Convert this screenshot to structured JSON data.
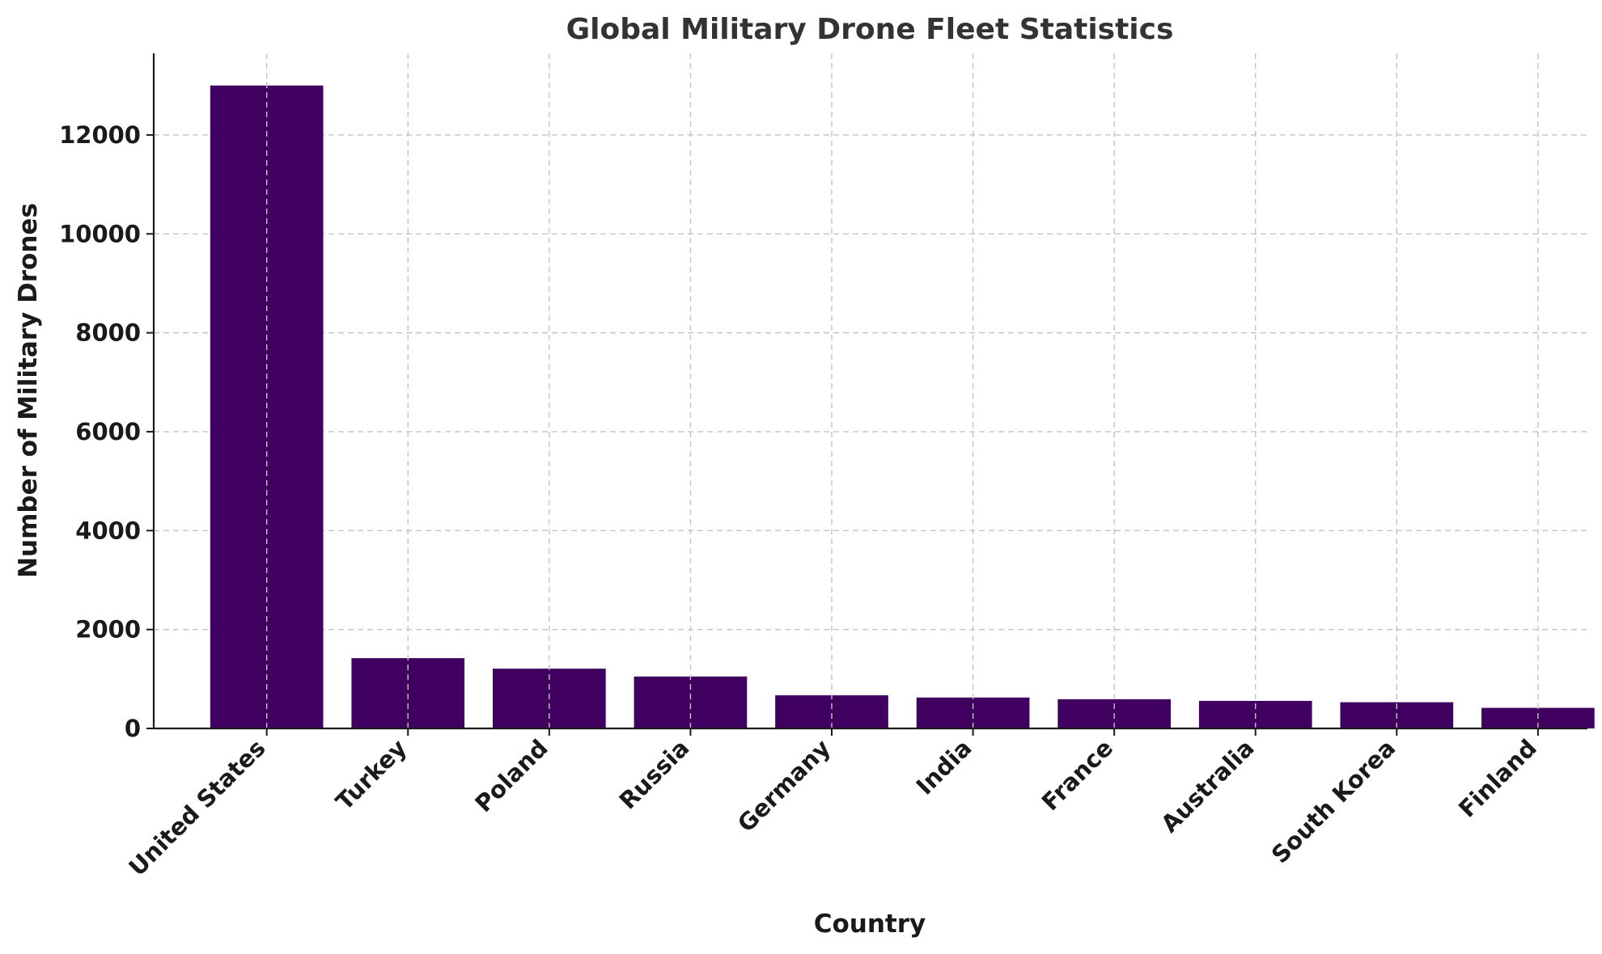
{
  "chart_data": {
    "type": "bar",
    "title": "Global Military Drone Fleet Statistics",
    "xlabel": "Country",
    "ylabel": "Number of Military Drones",
    "categories": [
      "United States",
      "Turkey",
      "Poland",
      "Russia",
      "Germany",
      "India",
      "France",
      "Australia",
      "South Korea",
      "Finland"
    ],
    "values": [
      13000,
      1421,
      1209,
      1050,
      670,
      625,
      591,
      557,
      530,
      416
    ],
    "ylim": [
      0,
      13650
    ],
    "yticks": [
      0,
      2000,
      4000,
      6000,
      8000,
      10000,
      12000
    ],
    "grid": true,
    "bar_color": "#3f005f",
    "grid_color": "#c4c4c4"
  }
}
